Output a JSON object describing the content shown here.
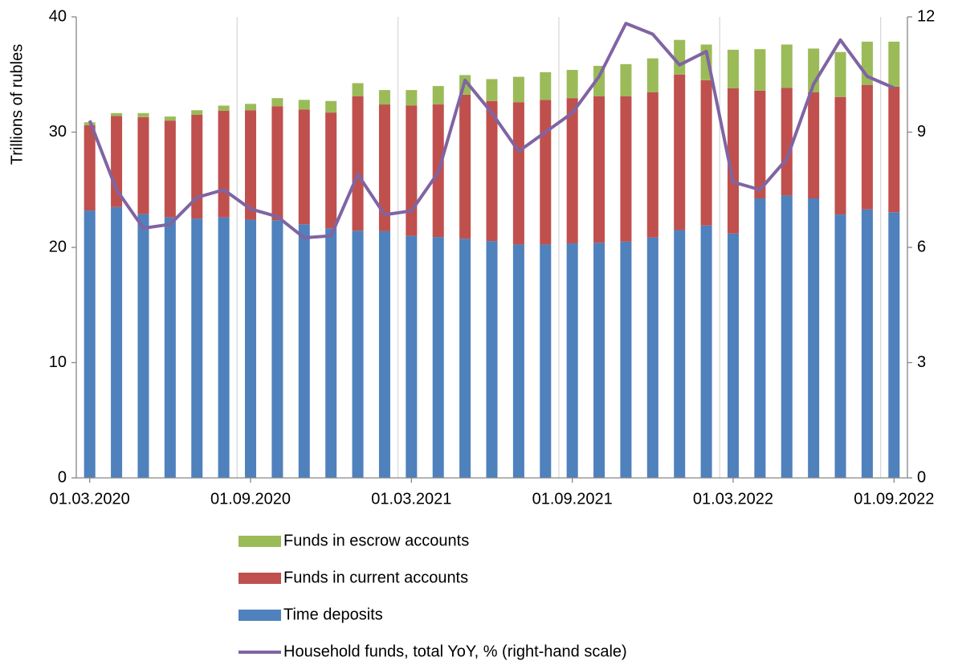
{
  "chart_data": {
    "type": "bar",
    "y_label": "Trillions of rubles",
    "categories": [
      "01.03.2020",
      null,
      null,
      null,
      null,
      null,
      "01.09.2020",
      null,
      null,
      null,
      null,
      null,
      "01.03.2021",
      null,
      null,
      null,
      null,
      null,
      "01.09.2021",
      null,
      null,
      null,
      null,
      null,
      "01.03.2022",
      null,
      null,
      null,
      null,
      null,
      "01.09.2022"
    ],
    "stacked": true,
    "xgrid": true,
    "ylim": [
      0,
      40
    ],
    "yticks": [
      0,
      10,
      20,
      30,
      40
    ],
    "y2lim": [
      0,
      12
    ],
    "y2ticks": [
      0,
      3,
      6,
      9,
      12
    ],
    "series": [
      {
        "name": "Time deposits",
        "color": "#4f81bd",
        "values": [
          23.2,
          23.5,
          22.9,
          22.6,
          22.5,
          22.6,
          22.4,
          22.35,
          22.0,
          21.65,
          21.45,
          21.4,
          21.0,
          20.9,
          20.75,
          20.55,
          20.25,
          20.25,
          20.35,
          20.4,
          20.5,
          20.85,
          21.5,
          21.9,
          21.2,
          24.25,
          24.5,
          24.25,
          22.85,
          23.3,
          23.05
        ]
      },
      {
        "name": "Funds in current accounts",
        "color": "#c0504d",
        "values": [
          7.4,
          7.9,
          8.4,
          8.4,
          9.0,
          9.25,
          9.5,
          9.9,
          9.95,
          10.05,
          11.65,
          11.0,
          11.3,
          11.5,
          12.5,
          12.15,
          12.35,
          12.55,
          12.6,
          12.7,
          12.6,
          12.6,
          13.5,
          12.6,
          12.6,
          9.35,
          9.35,
          9.2,
          10.2,
          10.8,
          10.9
        ]
      },
      {
        "name": "Funds in escrow accounts",
        "color": "#9bbb59",
        "values": [
          0.25,
          0.25,
          0.35,
          0.35,
          0.4,
          0.45,
          0.55,
          0.7,
          0.85,
          1.0,
          1.15,
          1.25,
          1.35,
          1.6,
          1.7,
          1.9,
          2.2,
          2.4,
          2.45,
          2.65,
          2.8,
          2.95,
          3.0,
          3.1,
          3.35,
          3.6,
          3.75,
          3.8,
          3.9,
          3.75,
          3.9
        ]
      },
      {
        "name": "Household funds, total YoY, % (right-hand scale)",
        "color": "#8064a2",
        "type": "line",
        "axis": "y2",
        "values": [
          9.3,
          7.5,
          6.5,
          6.6,
          7.3,
          7.5,
          7.0,
          6.8,
          6.25,
          6.3,
          7.9,
          6.85,
          6.95,
          7.95,
          10.35,
          9.5,
          8.5,
          9.0,
          9.5,
          10.45,
          11.83,
          11.55,
          10.75,
          11.1,
          7.7,
          7.5,
          8.3,
          10.25,
          11.4,
          10.45,
          10.15
        ]
      }
    ]
  }
}
